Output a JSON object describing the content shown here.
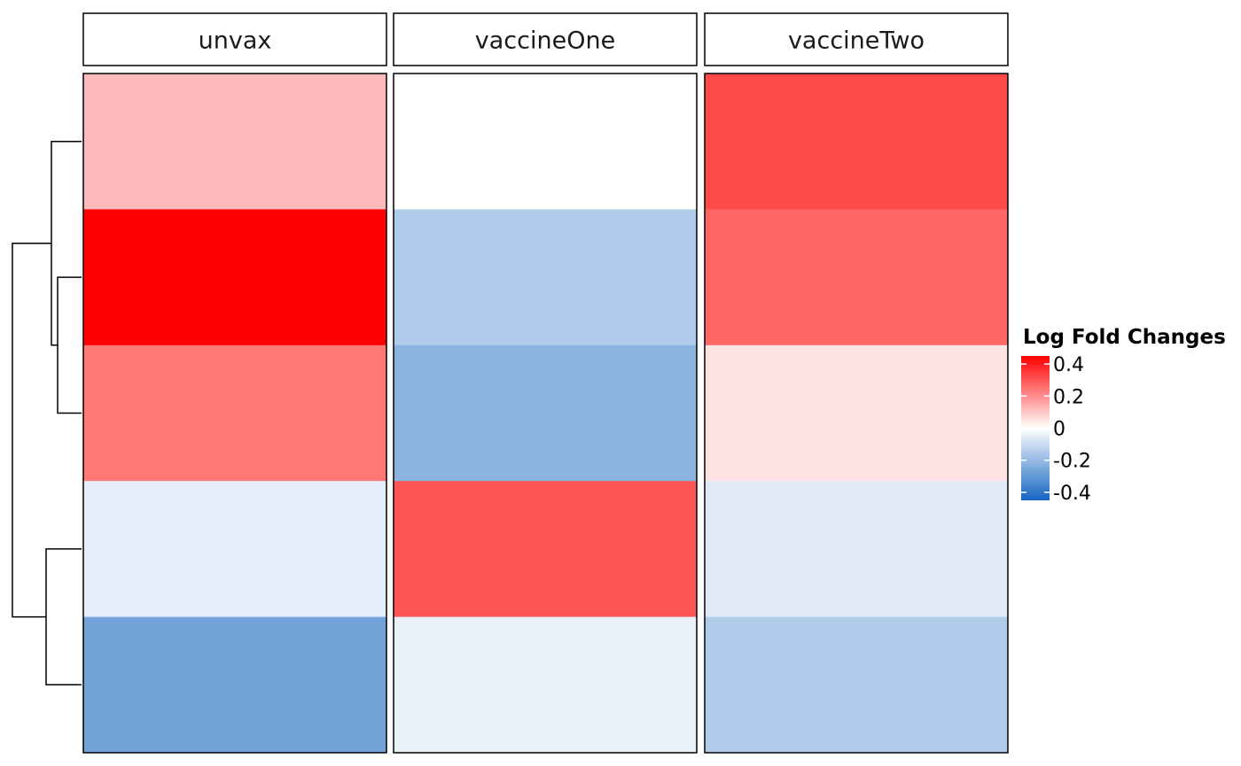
{
  "chart_data": {
    "type": "heatmap",
    "columns": [
      "unvax",
      "vaccineOne",
      "vaccineTwo"
    ],
    "rows": 5,
    "values": [
      [
        0.12,
        0.0,
        0.32
      ],
      [
        0.5,
        -0.15,
        0.27
      ],
      [
        0.24,
        -0.22,
        0.05
      ],
      [
        -0.05,
        0.3,
        -0.06
      ],
      [
        -0.27,
        -0.04,
        -0.15
      ]
    ],
    "color_scale": {
      "low": "#1565c0",
      "mid": "#ffffff",
      "high": "#ff0000",
      "limits": [
        -0.45,
        0.45
      ]
    },
    "legend": {
      "title": "Log Fold Changes",
      "ticks": [
        {
          "value": 0.4,
          "label": "0.4"
        },
        {
          "value": 0.2,
          "label": "0.2"
        },
        {
          "value": 0,
          "label": "0"
        },
        {
          "value": -0.2,
          "label": "-0.2"
        },
        {
          "value": -0.4,
          "label": "-0.4"
        }
      ],
      "position": "right"
    },
    "row_dendrogram": {
      "merges": [
        [
          1,
          2
        ],
        [
          0,
          "a"
        ],
        [
          3,
          4
        ],
        [
          "b",
          "c"
        ]
      ]
    }
  }
}
